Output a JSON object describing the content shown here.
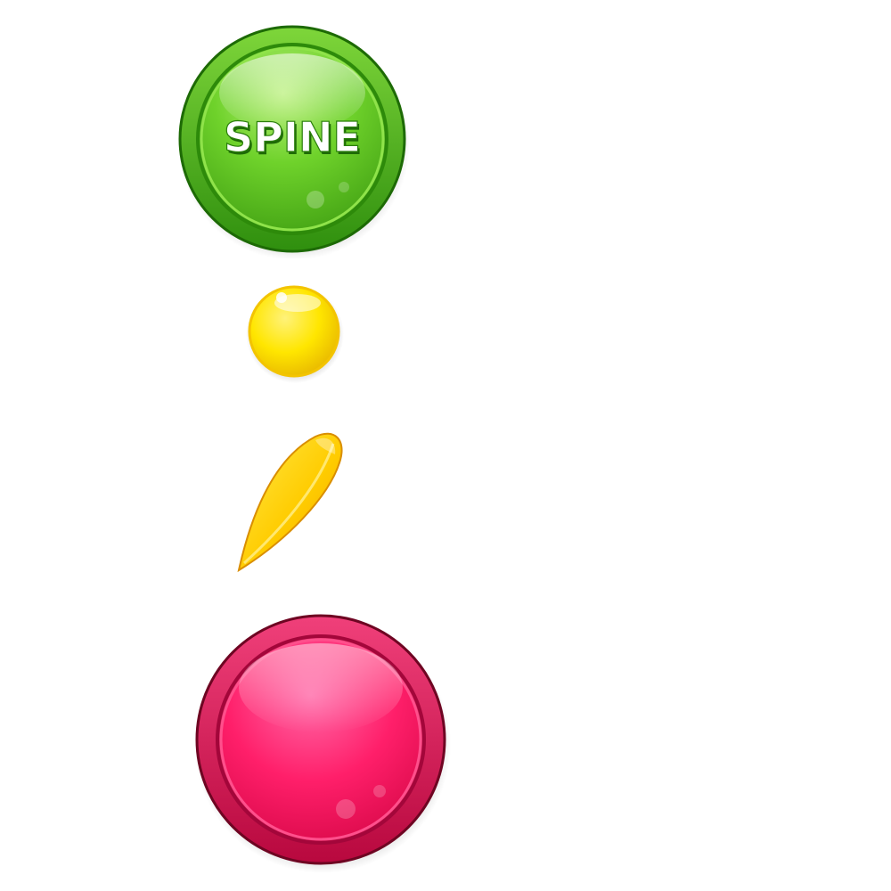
{
  "assets": {
    "spine_button": {
      "label": "SPINE",
      "icon": "round-glossy-button",
      "colors": {
        "outer_light": "#7ed63a",
        "outer_dark": "#2f8f0e",
        "rim_dark": "#1d6a05",
        "face_light": "#b9f07a",
        "face_mid": "#6fd22b",
        "face_dark": "#3f9e12",
        "inner_ring": "#8fe34a",
        "text": "#ffffff",
        "text_shadow": "#1e6a07"
      }
    },
    "yellow_orb": {
      "icon": "glossy-orb",
      "colors": {
        "light": "#fff27a",
        "mid": "#ffe600",
        "dark": "#e8b800",
        "rim": "#f3c400"
      }
    },
    "yellow_petal": {
      "icon": "petal-drop",
      "colors": {
        "light": "#ffe94a",
        "mid": "#ffcc00",
        "dark": "#f0a500",
        "edge": "#d98e00"
      }
    },
    "pink_button": {
      "icon": "round-glossy-button",
      "colors": {
        "outer_light": "#f0407a",
        "outer_dark": "#b8083e",
        "rim_dark": "#6e0522",
        "face_light": "#ff6aa8",
        "face_mid": "#ff1f6a",
        "face_dark": "#d40645",
        "inner_ring": "#ff4f8c"
      }
    }
  }
}
